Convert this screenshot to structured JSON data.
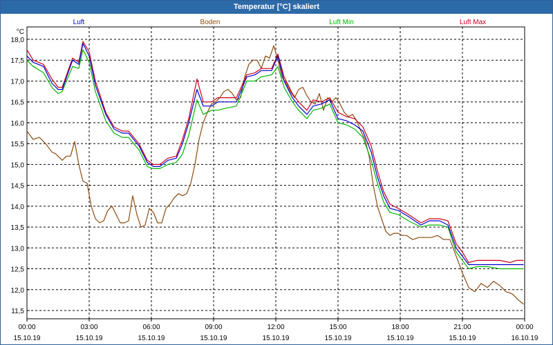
{
  "window": {
    "title": "Temperatur [°C] skaliert"
  },
  "chart_data": {
    "type": "line",
    "title": "Temperatur [°C] skaliert",
    "ylabel": "°C",
    "xlabel": "",
    "ylim": [
      11.5,
      18.0
    ],
    "xlim": [
      0,
      24
    ],
    "grid": true,
    "yticks": [
      "18,0",
      "17,5",
      "17,0",
      "16,5",
      "16,0",
      "15,5",
      "15,0",
      "14,5",
      "14,0",
      "13,5",
      "13,0",
      "12,5",
      "12,0",
      "11,5"
    ],
    "xticks": [
      {
        "time": "00:00",
        "date": "15.10.19",
        "hour": 0
      },
      {
        "time": "03:00",
        "date": "15.10.19",
        "hour": 3
      },
      {
        "time": "06:00",
        "date": "15.10.19",
        "hour": 6
      },
      {
        "time": "09:00",
        "date": "15.10.19",
        "hour": 9
      },
      {
        "time": "12:00",
        "date": "15.10.19",
        "hour": 12
      },
      {
        "time": "15:00",
        "date": "15.10.19",
        "hour": 15
      },
      {
        "time": "18:00",
        "date": "15.10.19",
        "hour": 18
      },
      {
        "time": "21:00",
        "date": "15.10.19",
        "hour": 21
      },
      {
        "time": "00:00",
        "date": "16.10.19",
        "hour": 24
      }
    ],
    "series": [
      {
        "name": "Luft",
        "color": "#0000c8",
        "x": [
          0,
          0.3,
          0.8,
          1.2,
          1.5,
          1.7,
          2.2,
          2.5,
          2.7,
          3.0,
          3.3,
          3.8,
          4.2,
          4.6,
          4.9,
          5.4,
          5.8,
          6.1,
          6.4,
          6.8,
          7.2,
          7.5,
          7.8,
          8.2,
          8.5,
          8.9,
          9.2,
          9.6,
          10.1,
          10.6,
          11.0,
          11.3,
          11.8,
          12.1,
          12.4,
          12.8,
          13.1,
          13.5,
          13.8,
          14.2,
          14.6,
          15.0,
          15.4,
          15.8,
          16.2,
          16.6,
          16.9,
          17.2,
          17.5,
          17.9,
          18.4,
          19.0,
          19.4,
          19.9,
          20.3,
          20.7,
          21.0,
          21.3,
          21.7,
          22.2,
          22.8,
          23.3,
          23.6,
          23.95
        ],
        "values": [
          17.6,
          17.45,
          17.35,
          16.95,
          16.8,
          16.8,
          17.5,
          17.4,
          17.9,
          17.6,
          16.9,
          16.2,
          15.85,
          15.75,
          15.75,
          15.45,
          15.05,
          14.95,
          14.95,
          15.1,
          15.15,
          15.5,
          16.0,
          16.8,
          16.4,
          16.4,
          16.5,
          16.5,
          16.5,
          17.1,
          17.15,
          17.25,
          17.25,
          17.6,
          17.0,
          16.6,
          16.4,
          16.2,
          16.4,
          16.45,
          16.55,
          16.1,
          16.05,
          15.95,
          15.8,
          15.3,
          14.7,
          14.25,
          13.95,
          13.9,
          13.75,
          13.55,
          13.65,
          13.65,
          13.55,
          13.0,
          12.8,
          12.6,
          12.6,
          12.6,
          12.6,
          12.6,
          12.6,
          12.6
        ]
      },
      {
        "name": "Boden",
        "color": "#8b4a10",
        "x": [
          0,
          0.3,
          0.6,
          0.9,
          1.2,
          1.4,
          1.7,
          1.9,
          2.1,
          2.3,
          2.5,
          2.7,
          2.9,
          3.1,
          3.3,
          3.5,
          3.7,
          3.9,
          4.1,
          4.3,
          4.5,
          4.7,
          4.9,
          5.1,
          5.3,
          5.5,
          5.7,
          5.9,
          6.1,
          6.3,
          6.5,
          6.7,
          6.9,
          7.1,
          7.3,
          7.5,
          7.7,
          7.9,
          8.1,
          8.3,
          8.5,
          8.7,
          8.9,
          9.1,
          9.3,
          9.5,
          9.7,
          9.9,
          10.1,
          10.3,
          10.5,
          10.7,
          10.9,
          11.1,
          11.3,
          11.5,
          11.7,
          11.9,
          12.1,
          12.3,
          12.5,
          12.7,
          12.9,
          13.1,
          13.3,
          13.5,
          13.7,
          13.9,
          14.1,
          14.3,
          14.5,
          14.7,
          14.9,
          15.1,
          15.3,
          15.5,
          15.7,
          15.9,
          16.1,
          16.3,
          16.5,
          16.7,
          16.9,
          17.1,
          17.3,
          17.5,
          17.7,
          17.9,
          18.1,
          18.3,
          18.6,
          18.9,
          19.2,
          19.5,
          19.8,
          20.1,
          20.4,
          20.7,
          21.0,
          21.3,
          21.6,
          21.9,
          22.2,
          22.5,
          22.8,
          23.1,
          23.4,
          23.7,
          23.95
        ],
        "values": [
          15.8,
          15.6,
          15.65,
          15.5,
          15.3,
          15.25,
          15.1,
          15.2,
          15.2,
          15.55,
          15.0,
          14.6,
          14.55,
          14.0,
          13.7,
          13.6,
          13.65,
          13.9,
          14.0,
          13.8,
          13.6,
          13.6,
          13.65,
          14.25,
          13.8,
          13.5,
          13.55,
          13.95,
          13.85,
          13.6,
          13.6,
          13.95,
          14.05,
          14.2,
          14.3,
          14.25,
          14.3,
          14.55,
          15.0,
          15.6,
          16.0,
          16.25,
          16.45,
          16.5,
          16.6,
          16.75,
          16.8,
          16.7,
          16.55,
          16.6,
          17.1,
          17.4,
          17.5,
          17.5,
          17.3,
          17.6,
          17.55,
          17.85,
          17.5,
          17.1,
          16.95,
          16.75,
          16.6,
          16.8,
          16.85,
          16.65,
          16.5,
          16.45,
          16.7,
          16.3,
          16.6,
          16.5,
          16.6,
          16.45,
          16.25,
          16.15,
          16.2,
          16.05,
          15.8,
          15.6,
          15.2,
          14.5,
          14.0,
          13.7,
          13.4,
          13.3,
          13.35,
          13.35,
          13.3,
          13.3,
          13.2,
          13.25,
          13.25,
          13.25,
          13.3,
          13.2,
          13.2,
          12.8,
          12.4,
          12.05,
          11.95,
          12.15,
          12.05,
          12.2,
          12.1,
          11.95,
          11.9,
          11.75,
          11.65
        ]
      },
      {
        "name": "Luft Min",
        "color": "#00b400",
        "x": [
          0,
          0.3,
          0.8,
          1.2,
          1.5,
          1.7,
          2.2,
          2.5,
          2.7,
          3.0,
          3.3,
          3.8,
          4.2,
          4.6,
          4.9,
          5.4,
          5.8,
          6.1,
          6.4,
          6.8,
          7.2,
          7.5,
          7.8,
          8.2,
          8.5,
          8.9,
          9.2,
          9.6,
          10.1,
          10.6,
          11.0,
          11.3,
          11.8,
          12.1,
          12.4,
          12.8,
          13.1,
          13.5,
          13.8,
          14.2,
          14.6,
          15.0,
          15.4,
          15.8,
          16.2,
          16.6,
          16.9,
          17.2,
          17.5,
          17.9,
          18.4,
          19.0,
          19.4,
          19.9,
          20.3,
          20.7,
          21.0,
          21.3,
          21.7,
          22.2,
          22.8,
          23.3,
          23.6,
          23.95
        ],
        "values": [
          17.5,
          17.35,
          17.2,
          16.85,
          16.7,
          16.75,
          17.35,
          17.3,
          17.75,
          17.45,
          16.75,
          16.05,
          15.75,
          15.65,
          15.65,
          15.35,
          14.95,
          14.9,
          14.9,
          15.0,
          15.05,
          15.25,
          15.7,
          16.55,
          16.2,
          16.3,
          16.3,
          16.35,
          16.4,
          17.0,
          17.0,
          17.1,
          17.15,
          17.35,
          16.85,
          16.5,
          16.3,
          16.1,
          16.3,
          16.35,
          16.45,
          16.0,
          15.95,
          15.85,
          15.65,
          15.1,
          14.55,
          14.1,
          13.85,
          13.8,
          13.65,
          13.5,
          13.55,
          13.55,
          13.5,
          12.9,
          12.7,
          12.5,
          12.55,
          12.55,
          12.5,
          12.5,
          12.5,
          12.5
        ]
      },
      {
        "name": "Luft Max",
        "color": "#c8001e",
        "x": [
          0,
          0.3,
          0.8,
          1.2,
          1.5,
          1.7,
          2.2,
          2.5,
          2.7,
          3.0,
          3.3,
          3.8,
          4.2,
          4.6,
          4.9,
          5.4,
          5.8,
          6.1,
          6.4,
          6.8,
          7.2,
          7.5,
          7.8,
          8.2,
          8.5,
          8.9,
          9.2,
          9.6,
          10.1,
          10.6,
          11.0,
          11.3,
          11.8,
          12.1,
          12.4,
          12.8,
          13.1,
          13.5,
          13.8,
          14.2,
          14.6,
          15.0,
          15.4,
          15.8,
          16.2,
          16.6,
          16.9,
          17.2,
          17.5,
          17.9,
          18.4,
          19.0,
          19.4,
          19.9,
          20.3,
          20.7,
          21.0,
          21.3,
          21.7,
          22.2,
          22.8,
          23.3,
          23.6,
          23.95
        ],
        "values": [
          17.75,
          17.5,
          17.4,
          17.05,
          16.85,
          16.85,
          17.55,
          17.45,
          17.95,
          17.7,
          17.0,
          16.25,
          15.9,
          15.8,
          15.8,
          15.5,
          15.1,
          15.0,
          15.0,
          15.15,
          15.2,
          15.6,
          16.1,
          17.05,
          16.5,
          16.5,
          16.6,
          16.6,
          16.6,
          17.15,
          17.2,
          17.3,
          17.3,
          17.65,
          17.1,
          16.7,
          16.5,
          16.3,
          16.55,
          16.5,
          16.6,
          16.25,
          16.15,
          16.1,
          15.9,
          15.45,
          14.85,
          14.35,
          14.05,
          13.95,
          13.8,
          13.6,
          13.7,
          13.7,
          13.65,
          13.1,
          12.9,
          12.65,
          12.7,
          12.7,
          12.7,
          12.65,
          12.7,
          12.7
        ]
      }
    ]
  }
}
